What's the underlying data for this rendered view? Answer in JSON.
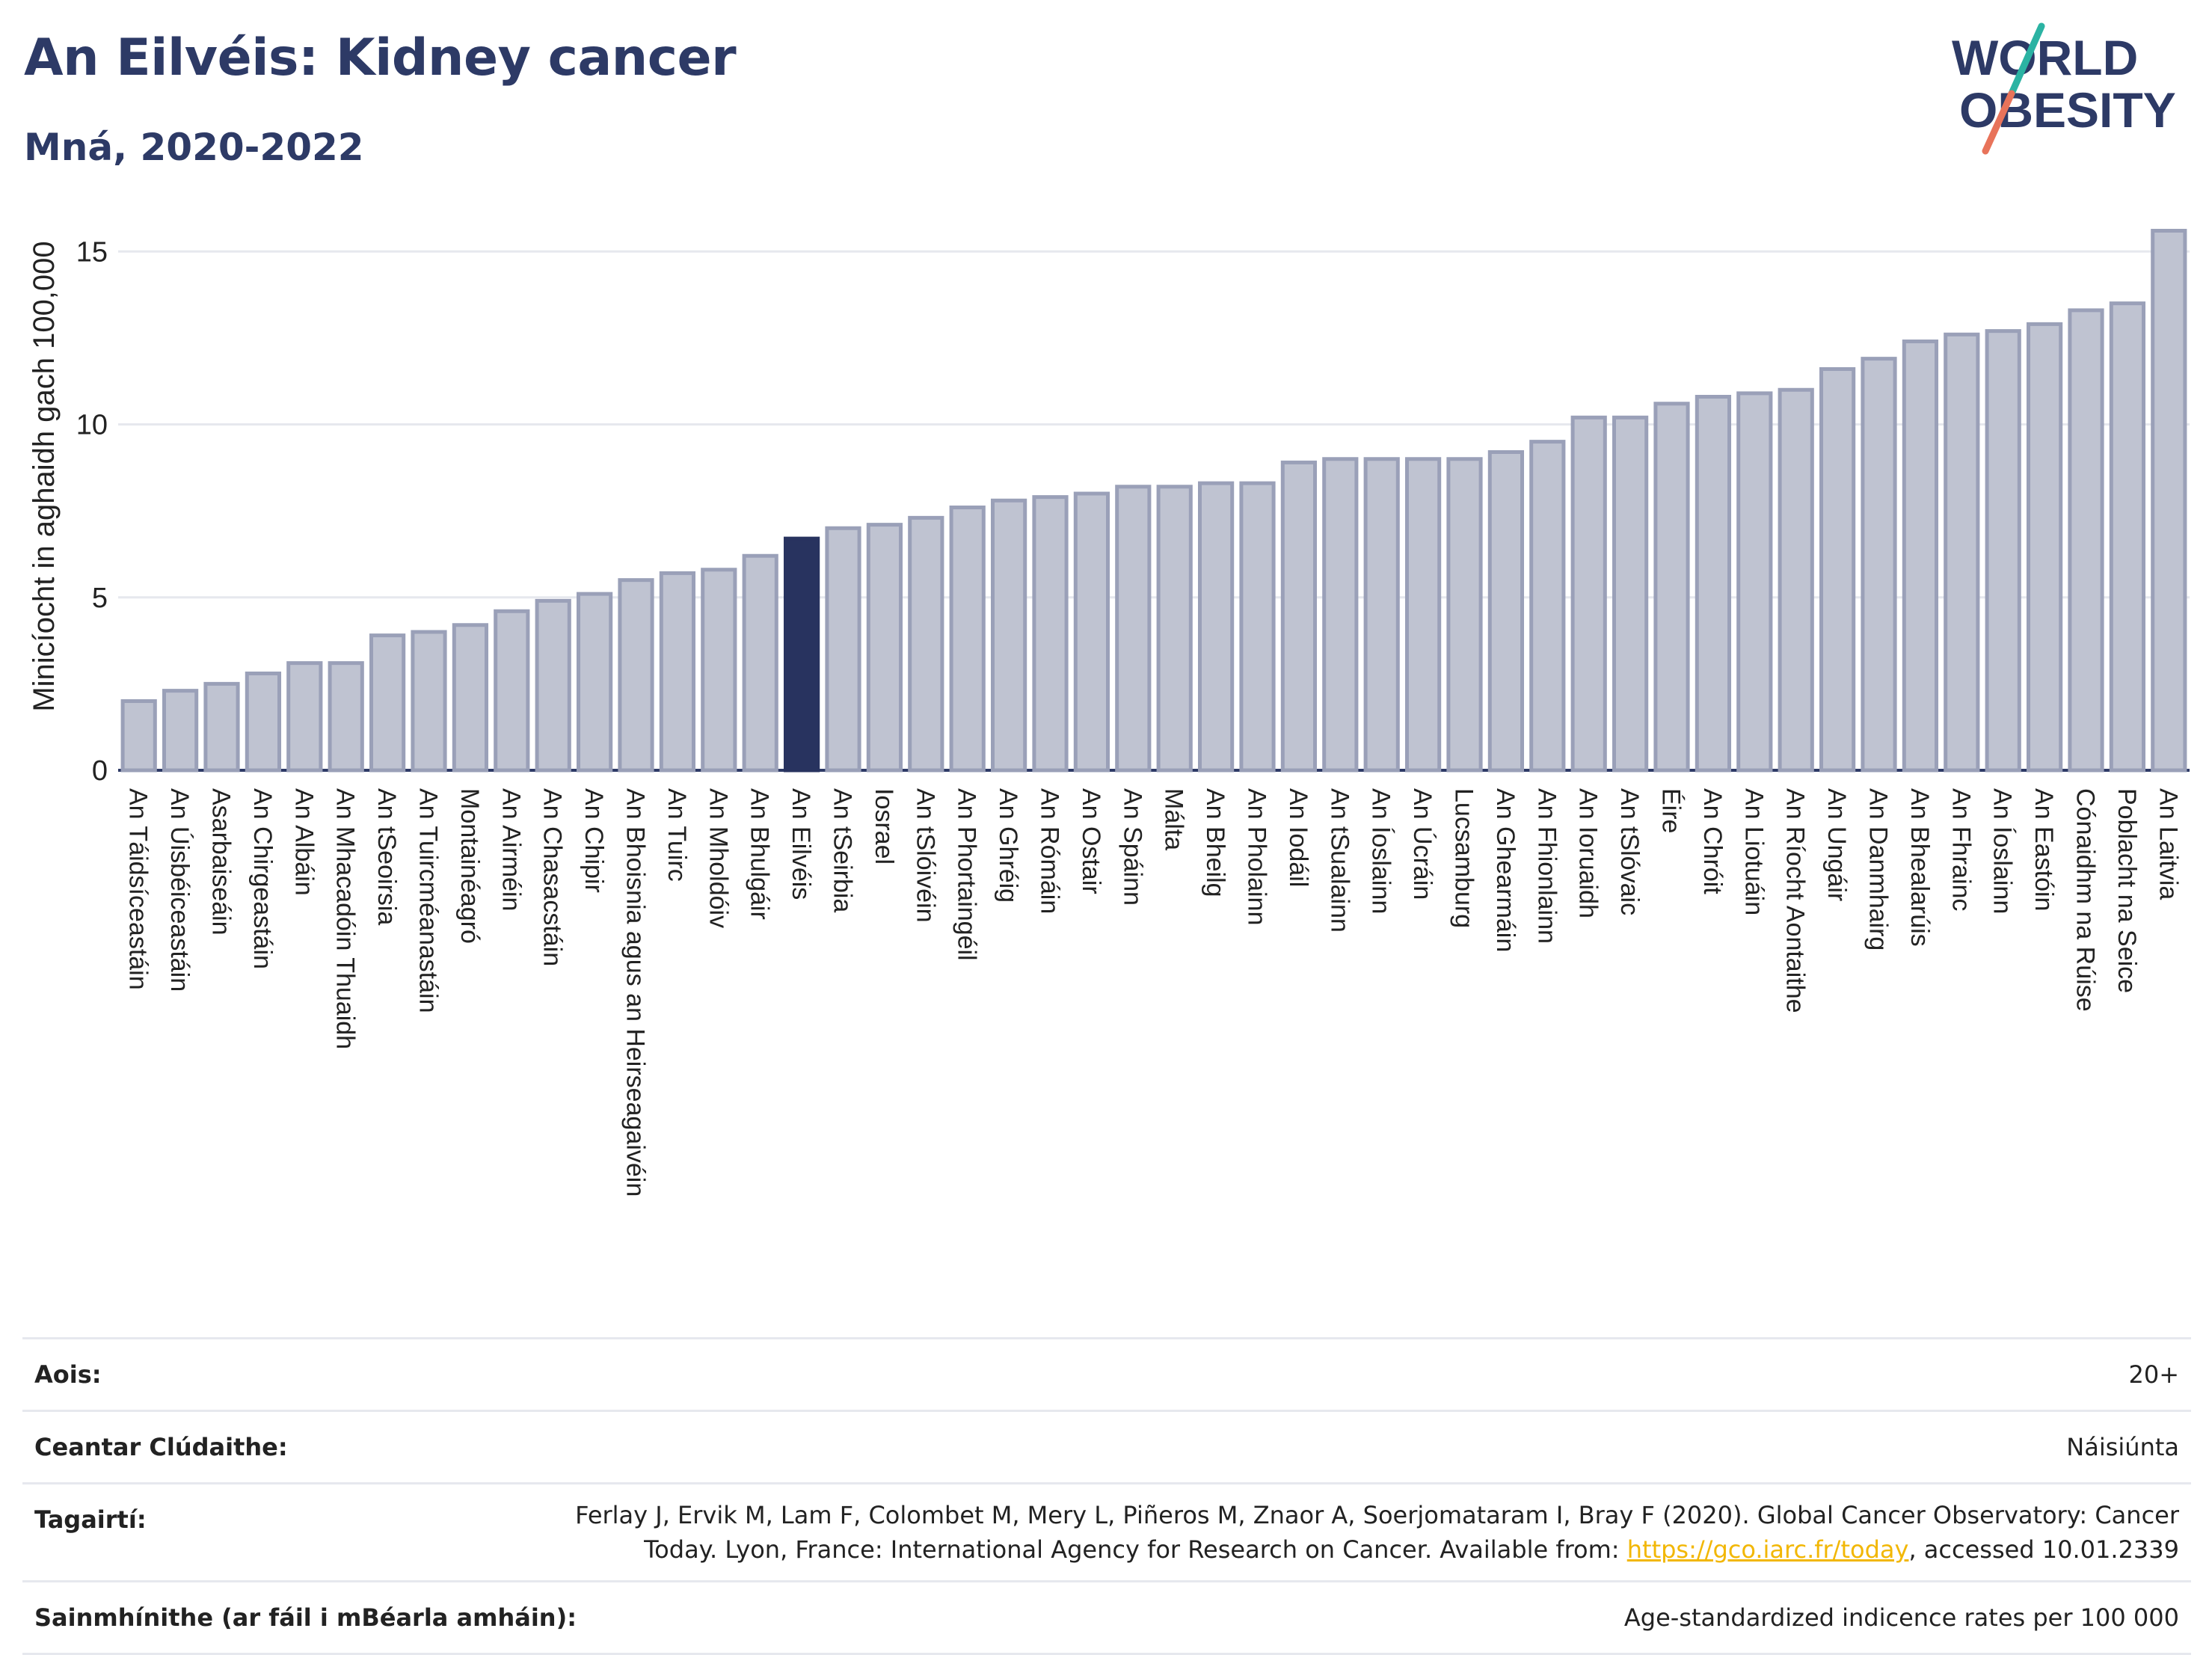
{
  "header": {
    "title": "An Eilvéis: Kidney cancer",
    "subtitle": "Mná, 2020-2022"
  },
  "logo": {
    "line1": "WORLD",
    "line2": "OBESITY",
    "colors": {
      "text": "#2d3a66",
      "slash_top": "#2bb3a3",
      "slash_bottom": "#e8735a"
    }
  },
  "colors": {
    "bar": "#bfc3d1",
    "bar_stroke": "#9aa0b8",
    "highlight": "#28335f",
    "grid": "#e6e8ee",
    "axis": "#2d3a66"
  },
  "chart_data": {
    "type": "bar",
    "ylabel": "Minicíocht in aghaidh gach 100,000",
    "ylim": [
      0,
      16
    ],
    "yticks": [
      0,
      5,
      10,
      15
    ],
    "highlight": "An Eilvéis",
    "grid": true,
    "categories": [
      "An Táidsíceastáin",
      "An Úisbéiceastáin",
      "Asarbaiseáin",
      "An Chirgeastáin",
      "An Albáin",
      "An Mhacadóin Thuaidh",
      "An tSeoirsia",
      "An Tuircméanastáin",
      "Montainéagró",
      "An Airméin",
      "An Chasacstáin",
      "An Chipir",
      "An Bhoisnia agus an Heirseagaivéin",
      "An Tuirc",
      "An Mholdóiv",
      "An Bhulgáir",
      "An Eilvéis",
      "An tSeirbia",
      "Iosrael",
      "An tSlóivéin",
      "An Phortaingéil",
      "An Ghréig",
      "An Rómáin",
      "An Ostair",
      "An Spáinn",
      "Málta",
      "An Bheilg",
      "An Pholainn",
      "An Iodáil",
      "An tSualainn",
      "An Íoslainn",
      "An Úcráin",
      "Lucsamburg",
      "An Ghearmáin",
      "An Fhionlainn",
      "An Ioruaidh",
      "An tSlóvaic",
      "Éire",
      "An Chróit",
      "An Liotuáin",
      "An Ríocht Aontaithe",
      "An Ungáir",
      "An Danmhairg",
      "An Bhealarúis",
      "An Fhrainc",
      "An Íoslainn",
      "An Eastóin",
      "Cónaidhm na Rúise",
      "Poblacht na Seice",
      "An Laitvia"
    ],
    "values": [
      2.0,
      2.3,
      2.5,
      2.8,
      3.1,
      3.1,
      3.9,
      4.0,
      4.2,
      4.6,
      4.9,
      5.1,
      5.5,
      5.7,
      5.8,
      6.2,
      6.7,
      7.0,
      7.1,
      7.3,
      7.6,
      7.8,
      7.9,
      8.0,
      8.2,
      8.2,
      8.3,
      8.3,
      8.9,
      9.0,
      9.0,
      9.0,
      9.0,
      9.2,
      9.5,
      10.2,
      10.2,
      10.6,
      10.8,
      10.9,
      11.0,
      11.6,
      11.9,
      12.4,
      12.6,
      12.7,
      12.9,
      13.3,
      13.5,
      15.6
    ]
  },
  "meta": {
    "age_label": "Aois:",
    "age_value": "20+",
    "coverage_label": "Ceantar Clúdaithe:",
    "coverage_value": "Náisiúnta",
    "references_label": "Tagairtí:",
    "references_text_1": "Ferlay J, Ervik M, Lam F, Colombet M, Mery L, Piñeros M, Znaor A, Soerjomataram I, Bray F (2020). Global Cancer Observatory: Cancer Today. Lyon, France: International Agency for Research on Cancer. Available from: ",
    "references_link": "https://gco.iarc.fr/today",
    "references_text_2": ", accessed 10.01.2339",
    "definitions_label": "Sainmhínithe (ar fáil i mBéarla amháin):",
    "definitions_value": "Age-standardized indicence rates per 100 000"
  }
}
